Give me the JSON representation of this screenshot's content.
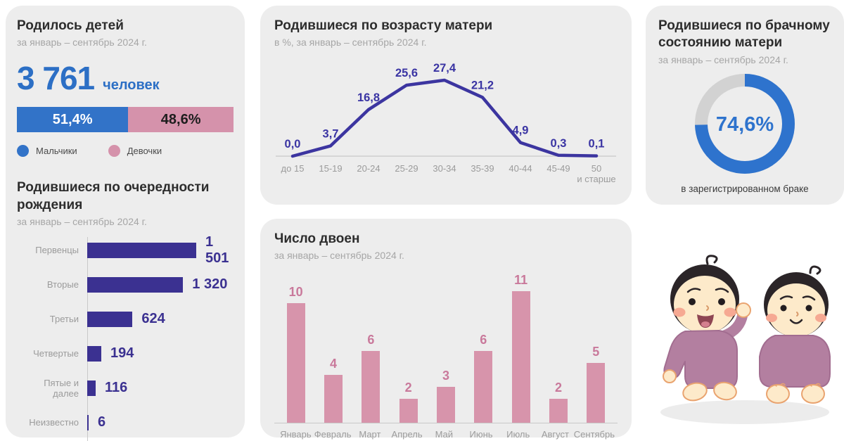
{
  "colors": {
    "card_bg": "#ededed",
    "blue": "#3273c8",
    "blue_number": "#2c6fc5",
    "donut_blue": "#2e73cd",
    "donut_rest": "#d2d2d2",
    "pink": "#d592ab",
    "pink_bar": "#d794ab",
    "pink_label": "#c9799b",
    "indigo_bar": "#3b3191",
    "indigo_line": "#3c35a0",
    "axis_gray": "#c8c8c8",
    "tick_gray": "#9b9b9b"
  },
  "cards": {
    "total": {
      "title": "Родилось детей",
      "subtitle": "за январь – сентябрь 2024 г.",
      "value": "3 761",
      "unit": "человек"
    },
    "order": {
      "title": "Родившиеся по очередности рождения",
      "subtitle": "за январь – сентябрь 2024 г."
    },
    "age": {
      "title": "Родившиеся по возрасту матери",
      "subtitle": "в %, за январь – сентябрь 2024 г."
    },
    "marital": {
      "title": "Родившиеся по брачному состоянию матери",
      "subtitle": "за январь – сентябрь 2024 г.",
      "center_label": "74,6%",
      "caption": "в зарегистрированном браке"
    },
    "twins": {
      "title": "Число двоен",
      "subtitle": "за январь – сентябрь 2024 г."
    }
  },
  "chart_data": [
    {
      "id": "gender_split",
      "type": "bar",
      "variant": "stacked-horizontal",
      "series": [
        {
          "name": "Мальчики",
          "value": 51.4,
          "label": "51,4%",
          "color": "#3273c8"
        },
        {
          "name": "Девочки",
          "value": 48.6,
          "label": "48,6%",
          "color": "#d592ab"
        }
      ],
      "legend_position": "bottom"
    },
    {
      "id": "birth_order",
      "type": "bar",
      "variant": "horizontal",
      "categories": [
        "Первенцы",
        "Вторые",
        "Третьи",
        "Четвертые",
        "Пятые и далее",
        "Неизвестно"
      ],
      "values": [
        1501,
        1320,
        624,
        194,
        116,
        6
      ],
      "labels": [
        "1 501",
        "1 320",
        "624",
        "194",
        "116",
        "6"
      ],
      "xlim": [
        0,
        1600
      ],
      "grid": false
    },
    {
      "id": "mother_age",
      "type": "line",
      "categories": [
        "до 15",
        "15-19",
        "20-24",
        "25-29",
        "30-34",
        "35-39",
        "40-44",
        "45-49",
        "50\nи старше"
      ],
      "values": [
        0.0,
        3.7,
        16.8,
        25.6,
        27.4,
        21.2,
        4.9,
        0.3,
        0.1
      ],
      "labels": [
        "0,0",
        "3,7",
        "16,8",
        "25,6",
        "27,4",
        "21,2",
        "4,9",
        "0,3",
        "0,1"
      ],
      "unit": "%",
      "ylim": [
        0,
        28
      ],
      "grid": false
    },
    {
      "id": "marital_status",
      "type": "pie",
      "variant": "donut",
      "slices": [
        {
          "label": "в зарегистрированном браке",
          "value": 74.6,
          "display": "74,6%",
          "color": "#2e73cd"
        },
        {
          "value": 25.4,
          "color": "#d2d2d2"
        }
      ]
    },
    {
      "id": "twins_by_month",
      "type": "bar",
      "variant": "vertical",
      "categories": [
        "Январь",
        "Февраль",
        "Март",
        "Апрель",
        "Май",
        "Июнь",
        "Июль",
        "Август",
        "Сентябрь"
      ],
      "values": [
        10,
        4,
        6,
        2,
        3,
        6,
        11,
        2,
        5
      ],
      "ylim": [
        0,
        12
      ],
      "grid": false
    }
  ]
}
